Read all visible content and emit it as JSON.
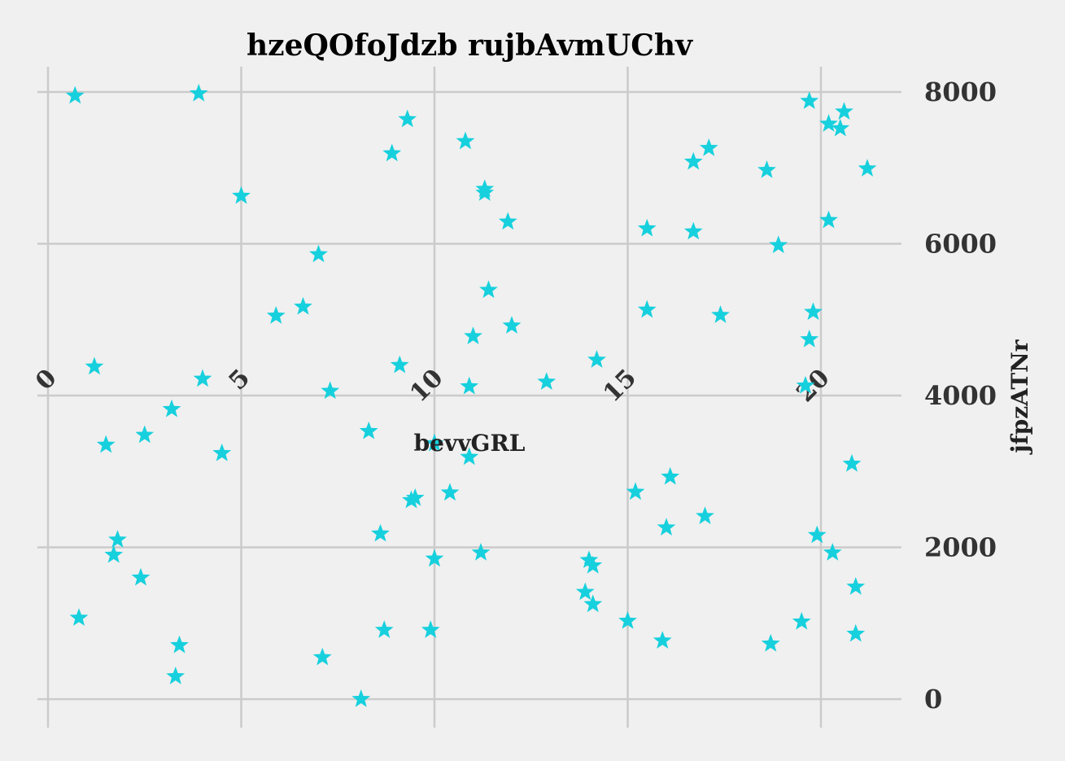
{
  "chart_data": {
    "type": "scatter",
    "title": "hzeQOfoJdzb  rujbAvmUChv",
    "xlabel": "bevvGRL",
    "ylabel": "jfpzATNr",
    "xlim": [
      -0.5,
      22
    ],
    "ylim": [
      -300,
      8300
    ],
    "x_ticks": [
      0,
      5,
      10,
      15,
      20
    ],
    "y_ticks": [
      0,
      2000,
      4000,
      6000,
      8000
    ],
    "x_tick_labels": [
      "0",
      "5",
      "10",
      "15",
      "20"
    ],
    "y_tick_labels": [
      "0",
      "2000",
      "4000",
      "6000",
      "8000"
    ],
    "y_axis_side": "right",
    "grid": true,
    "marker": "star",
    "color": "#17d0dd",
    "background": "#f0f0f0",
    "points": [
      {
        "x": 0.7,
        "y": 7950
      },
      {
        "x": 3.9,
        "y": 7980
      },
      {
        "x": 0.8,
        "y": 1070
      },
      {
        "x": 1.2,
        "y": 4380
      },
      {
        "x": 1.5,
        "y": 3350
      },
      {
        "x": 1.7,
        "y": 1900
      },
      {
        "x": 1.8,
        "y": 2100
      },
      {
        "x": 2.4,
        "y": 1600
      },
      {
        "x": 2.5,
        "y": 3480
      },
      {
        "x": 3.2,
        "y": 3820
      },
      {
        "x": 3.3,
        "y": 300
      },
      {
        "x": 3.4,
        "y": 710
      },
      {
        "x": 4.0,
        "y": 4220
      },
      {
        "x": 4.5,
        "y": 3240
      },
      {
        "x": 5.0,
        "y": 6630
      },
      {
        "x": 5.9,
        "y": 5050
      },
      {
        "x": 6.6,
        "y": 5170
      },
      {
        "x": 7.0,
        "y": 5860
      },
      {
        "x": 7.1,
        "y": 550
      },
      {
        "x": 7.3,
        "y": 4060
      },
      {
        "x": 8.1,
        "y": 0
      },
      {
        "x": 8.3,
        "y": 3530
      },
      {
        "x": 8.6,
        "y": 2180
      },
      {
        "x": 8.7,
        "y": 910
      },
      {
        "x": 8.9,
        "y": 7190
      },
      {
        "x": 9.1,
        "y": 4400
      },
      {
        "x": 9.3,
        "y": 7640
      },
      {
        "x": 9.4,
        "y": 2620
      },
      {
        "x": 9.5,
        "y": 2650
      },
      {
        "x": 9.9,
        "y": 910
      },
      {
        "x": 10.0,
        "y": 1850
      },
      {
        "x": 10.0,
        "y": 3370
      },
      {
        "x": 10.4,
        "y": 2720
      },
      {
        "x": 10.8,
        "y": 7350
      },
      {
        "x": 10.9,
        "y": 4120
      },
      {
        "x": 10.9,
        "y": 3190
      },
      {
        "x": 11.0,
        "y": 4780
      },
      {
        "x": 11.2,
        "y": 1930
      },
      {
        "x": 11.3,
        "y": 6720
      },
      {
        "x": 11.3,
        "y": 6670
      },
      {
        "x": 11.4,
        "y": 5390
      },
      {
        "x": 11.9,
        "y": 6290
      },
      {
        "x": 12.0,
        "y": 4920
      },
      {
        "x": 12.9,
        "y": 4180
      },
      {
        "x": 13.9,
        "y": 1410
      },
      {
        "x": 14.0,
        "y": 1830
      },
      {
        "x": 14.1,
        "y": 1250
      },
      {
        "x": 14.1,
        "y": 1760
      },
      {
        "x": 14.2,
        "y": 4470
      },
      {
        "x": 15.0,
        "y": 1030
      },
      {
        "x": 15.2,
        "y": 2730
      },
      {
        "x": 15.5,
        "y": 5130
      },
      {
        "x": 15.5,
        "y": 6200
      },
      {
        "x": 15.9,
        "y": 770
      },
      {
        "x": 16.0,
        "y": 2260
      },
      {
        "x": 16.1,
        "y": 2930
      },
      {
        "x": 16.7,
        "y": 6160
      },
      {
        "x": 16.7,
        "y": 7080
      },
      {
        "x": 17.0,
        "y": 2410
      },
      {
        "x": 17.1,
        "y": 7260
      },
      {
        "x": 17.4,
        "y": 5060
      },
      {
        "x": 18.6,
        "y": 6970
      },
      {
        "x": 18.7,
        "y": 730
      },
      {
        "x": 18.9,
        "y": 5980
      },
      {
        "x": 19.5,
        "y": 1020
      },
      {
        "x": 19.6,
        "y": 4130
      },
      {
        "x": 19.7,
        "y": 4740
      },
      {
        "x": 19.7,
        "y": 7880
      },
      {
        "x": 19.8,
        "y": 5100
      },
      {
        "x": 19.9,
        "y": 2160
      },
      {
        "x": 20.2,
        "y": 7580
      },
      {
        "x": 20.2,
        "y": 6310
      },
      {
        "x": 20.3,
        "y": 1930
      },
      {
        "x": 20.5,
        "y": 7520
      },
      {
        "x": 20.6,
        "y": 7740
      },
      {
        "x": 20.8,
        "y": 3100
      },
      {
        "x": 20.9,
        "y": 1480
      },
      {
        "x": 20.9,
        "y": 860
      },
      {
        "x": 21.2,
        "y": 6990
      }
    ]
  }
}
